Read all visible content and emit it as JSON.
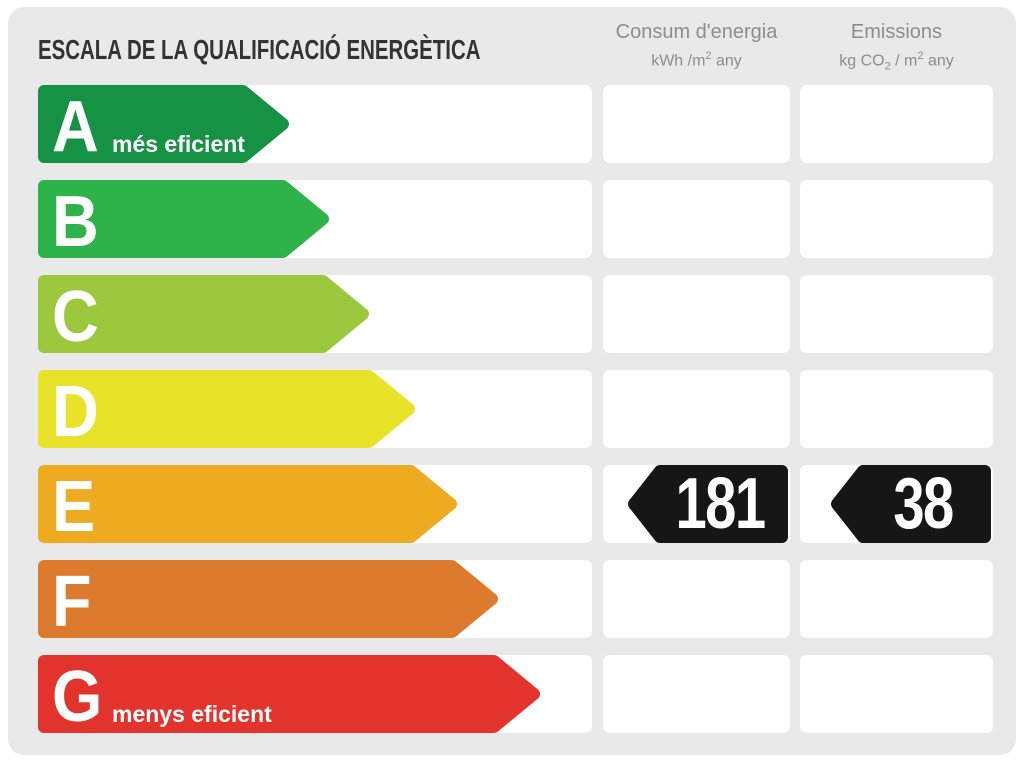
{
  "chart_data": {
    "type": "bar",
    "title": "ESCALA DE LA QUALIFICACIÓ ENERGÈTICA",
    "categories": [
      "A",
      "B",
      "C",
      "D",
      "E",
      "F",
      "G"
    ],
    "series": [
      {
        "name": "scale-arrow-relative-length-px",
        "values": [
          251,
          291,
          331,
          377,
          419,
          460,
          502
        ]
      }
    ],
    "bar_colors": [
      "#169245",
      "#2eb34a",
      "#9cc83d",
      "#e8e228",
      "#eeab20",
      "#dc7b2e",
      "#e2342c"
    ],
    "annotations": [
      "A: més eficient",
      "G: menys eficient"
    ],
    "columns": [
      "Consum d'energia (kWh/m2 any)",
      "Emissions (kg CO2/m2 any)"
    ],
    "rating": {
      "grade": "E",
      "consum_energia_kwh_m2_any": 181,
      "emissions_kg_co2_m2_any": 38
    },
    "legend": false,
    "grid": false
  },
  "panel": {
    "title": "ESCALA DE LA QUALIFICACIÓ ENERGÈTICA",
    "background": "#e8e9e8",
    "indicator_color": "#161616",
    "columns": [
      {
        "id": "consumption",
        "title": "Consum d'energia",
        "unit": {
          "pre": "kWh /m",
          "sup": "2",
          "post": " any"
        }
      },
      {
        "id": "emissions",
        "title": "Emissions",
        "unit": {
          "pre": "kg CO",
          "sub": "2",
          "mid": " / m",
          "sup": "2",
          "post": " any"
        }
      }
    ],
    "rows": [
      {
        "grade": "A",
        "note": "més eficient",
        "color": "#169245",
        "arrow_width": 251,
        "consumption": null,
        "emissions": null
      },
      {
        "grade": "B",
        "note": null,
        "color": "#2eb34a",
        "arrow_width": 291,
        "consumption": null,
        "emissions": null
      },
      {
        "grade": "C",
        "note": null,
        "color": "#9cc83d",
        "arrow_width": 331,
        "consumption": null,
        "emissions": null
      },
      {
        "grade": "D",
        "note": null,
        "color": "#e8e228",
        "arrow_width": 377,
        "consumption": null,
        "emissions": null
      },
      {
        "grade": "E",
        "note": null,
        "color": "#eeab20",
        "arrow_width": 419,
        "consumption": "181",
        "emissions": "38"
      },
      {
        "grade": "F",
        "note": null,
        "color": "#dc7b2e",
        "arrow_width": 460,
        "consumption": null,
        "emissions": null
      },
      {
        "grade": "G",
        "note": "menys eficient",
        "color": "#e2342c",
        "arrow_width": 502,
        "consumption": null,
        "emissions": null
      }
    ]
  }
}
